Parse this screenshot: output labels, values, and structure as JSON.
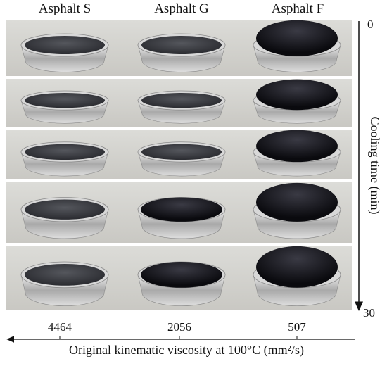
{
  "columns": [
    "Asphalt S",
    "Asphalt G",
    "Asphalt F"
  ],
  "cooling_axis": {
    "start": "0",
    "label": "Cooling time (min)",
    "end": "30"
  },
  "viscosity_axis": {
    "values": [
      "4464",
      "2056",
      "507"
    ],
    "label": "Original kinematic viscosity at 100°C (mm²/s)"
  }
}
